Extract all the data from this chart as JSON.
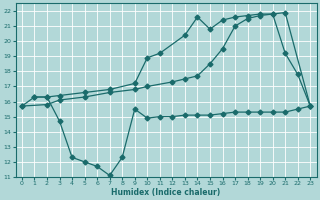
{
  "xlabel": "Humidex (Indice chaleur)",
  "bg_color": "#b2d8d8",
  "line_color": "#1a6b6b",
  "grid_color": "#ffffff",
  "xlim": [
    -0.5,
    23.5
  ],
  "ylim": [
    11,
    22.5
  ],
  "xticks": [
    0,
    1,
    2,
    3,
    4,
    5,
    6,
    7,
    8,
    9,
    10,
    11,
    12,
    13,
    14,
    15,
    16,
    17,
    18,
    19,
    20,
    21,
    22,
    23
  ],
  "yticks": [
    11,
    12,
    13,
    14,
    15,
    16,
    17,
    18,
    19,
    20,
    21,
    22
  ],
  "line1_x": [
    1,
    2,
    3,
    4,
    5,
    6,
    7,
    8,
    9,
    10,
    11,
    12,
    13,
    14,
    15,
    16,
    17,
    18,
    19,
    20,
    21,
    22,
    23
  ],
  "line1_y": [
    16.3,
    16.3,
    14.7,
    12.3,
    12.0,
    11.7,
    11.1,
    12.3,
    15.5,
    14.9,
    15.0,
    15.0,
    15.1,
    15.1,
    15.1,
    15.2,
    15.3,
    15.3,
    15.3,
    15.3,
    15.3,
    15.5,
    15.7
  ],
  "line2_x": [
    0,
    1,
    2,
    3,
    5,
    7,
    9,
    10,
    11,
    13,
    14,
    15,
    16,
    17,
    18,
    19,
    20,
    21,
    22,
    23
  ],
  "line2_y": [
    15.7,
    16.3,
    16.3,
    16.4,
    16.6,
    16.8,
    17.2,
    18.9,
    19.2,
    20.4,
    21.6,
    20.8,
    21.4,
    21.6,
    21.7,
    21.8,
    21.8,
    19.2,
    17.8,
    15.7
  ],
  "line3_x": [
    0,
    2,
    3,
    5,
    7,
    9,
    10,
    12,
    13,
    14,
    15,
    16,
    17,
    18,
    19,
    20,
    21,
    23
  ],
  "line3_y": [
    15.7,
    15.8,
    16.1,
    16.3,
    16.6,
    16.8,
    17.0,
    17.3,
    17.5,
    17.7,
    18.5,
    19.5,
    21.0,
    21.5,
    21.7,
    21.8,
    21.9,
    15.7
  ]
}
